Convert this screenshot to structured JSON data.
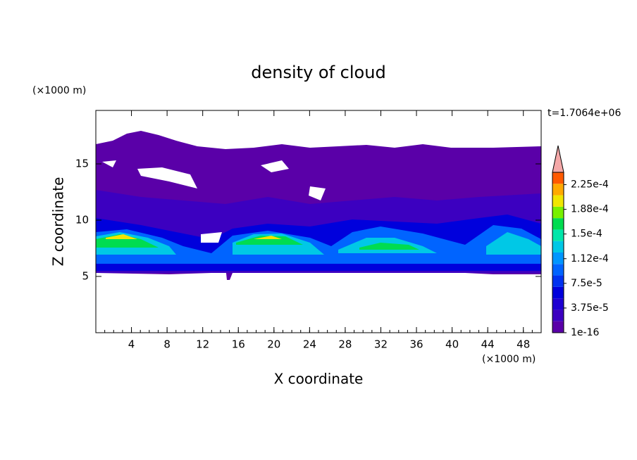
{
  "chart_data": {
    "type": "contour",
    "title": "density of cloud",
    "x_label": "X coordinate",
    "y_label": "Z coordinate",
    "x_unit": "(×1000 m)",
    "y_unit": "(×1000 m)",
    "time_label": "t=1.7064e+06",
    "xlim": [
      0,
      50
    ],
    "ylim": [
      0,
      19.75
    ],
    "xticks": [
      4,
      8,
      12,
      16,
      20,
      24,
      28,
      32,
      36,
      40,
      44,
      48
    ],
    "yticks": [
      5,
      10,
      15
    ],
    "colorbar": {
      "lim": [
        1e-16,
        0.00024375
      ],
      "ticks": [
        {
          "value": 1e-16,
          "label": "1e-16"
        },
        {
          "value": 3.75e-05,
          "label": "3.75e-5"
        },
        {
          "value": 7.5e-05,
          "label": "7.5e-5"
        },
        {
          "value": 0.0001125,
          "label": "1.12e-4"
        },
        {
          "value": 0.00015,
          "label": "1.5e-4"
        },
        {
          "value": 0.0001875,
          "label": "1.88e-4"
        },
        {
          "value": 0.000225,
          "label": "2.25e-4"
        }
      ],
      "colors": [
        "#5a00a8",
        "#3c00c0",
        "#1e00d2",
        "#0000dc",
        "#0032f0",
        "#0064ff",
        "#0096ff",
        "#00c8e6",
        "#00e6aa",
        "#00dc50",
        "#78f000",
        "#f0e600",
        "#ffaa00",
        "#ff5a00"
      ],
      "extend_color": "#f4a8a8"
    }
  }
}
